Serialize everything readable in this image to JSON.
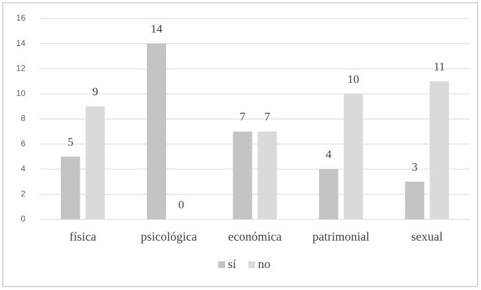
{
  "chart_data": {
    "type": "bar",
    "categories": [
      "física",
      "psicológica",
      "económica",
      "patrimonial",
      "sexual"
    ],
    "series": [
      {
        "name": "sí",
        "color": "#c4c4c4",
        "values": [
          5,
          14,
          7,
          4,
          3
        ]
      },
      {
        "name": "no",
        "color": "#dadada",
        "values": [
          9,
          0,
          7,
          10,
          11
        ]
      }
    ],
    "ylim": [
      0,
      16
    ],
    "yticks": [
      0,
      2,
      4,
      6,
      8,
      10,
      12,
      14,
      16
    ],
    "grid": true,
    "legend": "bottom"
  }
}
